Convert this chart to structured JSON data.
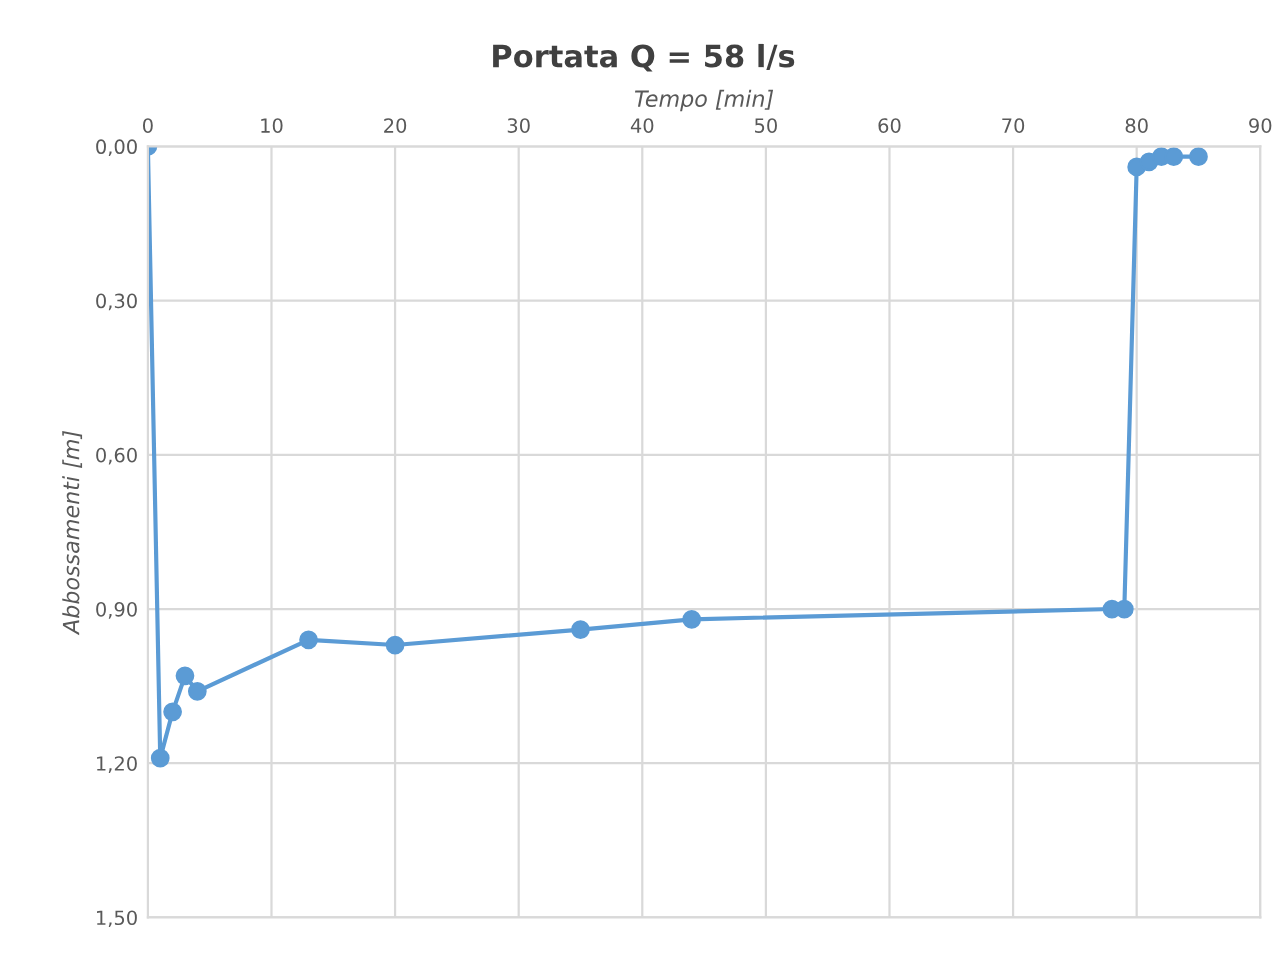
{
  "chart_data": {
    "type": "line",
    "title": "Portata Q = 58 l/s",
    "xlabel": "Tempo [min]",
    "ylabel": "Abbossamenti [m]",
    "x": [
      0,
      1,
      2,
      3,
      4,
      13,
      20,
      35,
      44,
      78,
      79,
      80,
      81,
      82,
      83,
      85
    ],
    "series": [
      {
        "color": "#5b9bd5",
        "values": [
          0.0,
          1.19,
          1.1,
          1.03,
          1.06,
          0.96,
          0.97,
          0.94,
          0.92,
          0.9,
          0.9,
          0.04,
          0.03,
          0.02,
          0.02,
          0.02
        ]
      }
    ],
    "xlim": [
      0,
      90
    ],
    "xticks": [
      0,
      10,
      20,
      30,
      40,
      50,
      60,
      70,
      80,
      90
    ],
    "ylim": [
      1.5,
      0
    ],
    "yticks": [
      {
        "value": 0,
        "label": "0,00"
      },
      {
        "value": 0.3,
        "label": "0,30"
      },
      {
        "value": 0.6,
        "label": "0,60"
      },
      {
        "value": 0.9,
        "label": "0,90"
      },
      {
        "value": 1.2,
        "label": "1,20"
      },
      {
        "value": 1.5,
        "label": "1,50"
      }
    ],
    "grid": true,
    "marker": "circle",
    "line_style": "solid"
  }
}
